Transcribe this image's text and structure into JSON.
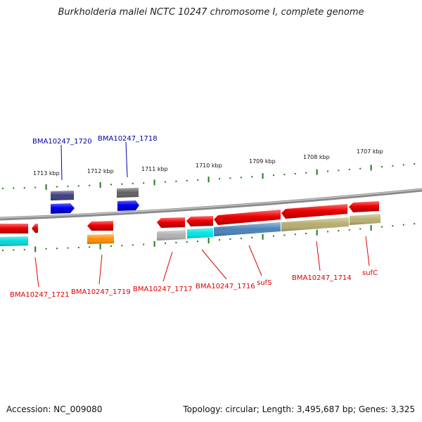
{
  "title": "Burkholderia mallei NCTC 10247 chromosome I, complete genome",
  "footer": {
    "accession": "Accession: NC_009080",
    "summary": "Topology: circular; Length: 3,495,687 bp; Genes: 3,325"
  },
  "colors": {
    "backbone": "#8a8a8a",
    "tick": "#1f7a1f",
    "forward_label": "#0000aa",
    "reverse_label": "#dd0000",
    "cds_reverse": "#ee1111",
    "cds_forward": "#1010ee"
  },
  "kbp_labels": [
    "1713 kbp",
    "1712 kbp",
    "1711 kbp",
    "1710 kbp",
    "1709 kbp",
    "1708 kbp",
    "1707 kbp"
  ],
  "forward_gene_labels": [
    "BMA10247_1720",
    "BMA10247_1718"
  ],
  "reverse_gene_labels": [
    "BMA10247_1721",
    "BMA10247_1719",
    "BMA10247_1717",
    "BMA10247_1716",
    "sufS",
    "BMA10247_1714",
    "sufC"
  ],
  "cog_bar_colors": [
    "#3c3c80",
    "#606060",
    "#00dada",
    "#ff8c00",
    "#b0b0b0",
    "#00e5e5",
    "#4a82b8",
    "#b4ad6e",
    "#b8b070"
  ]
}
